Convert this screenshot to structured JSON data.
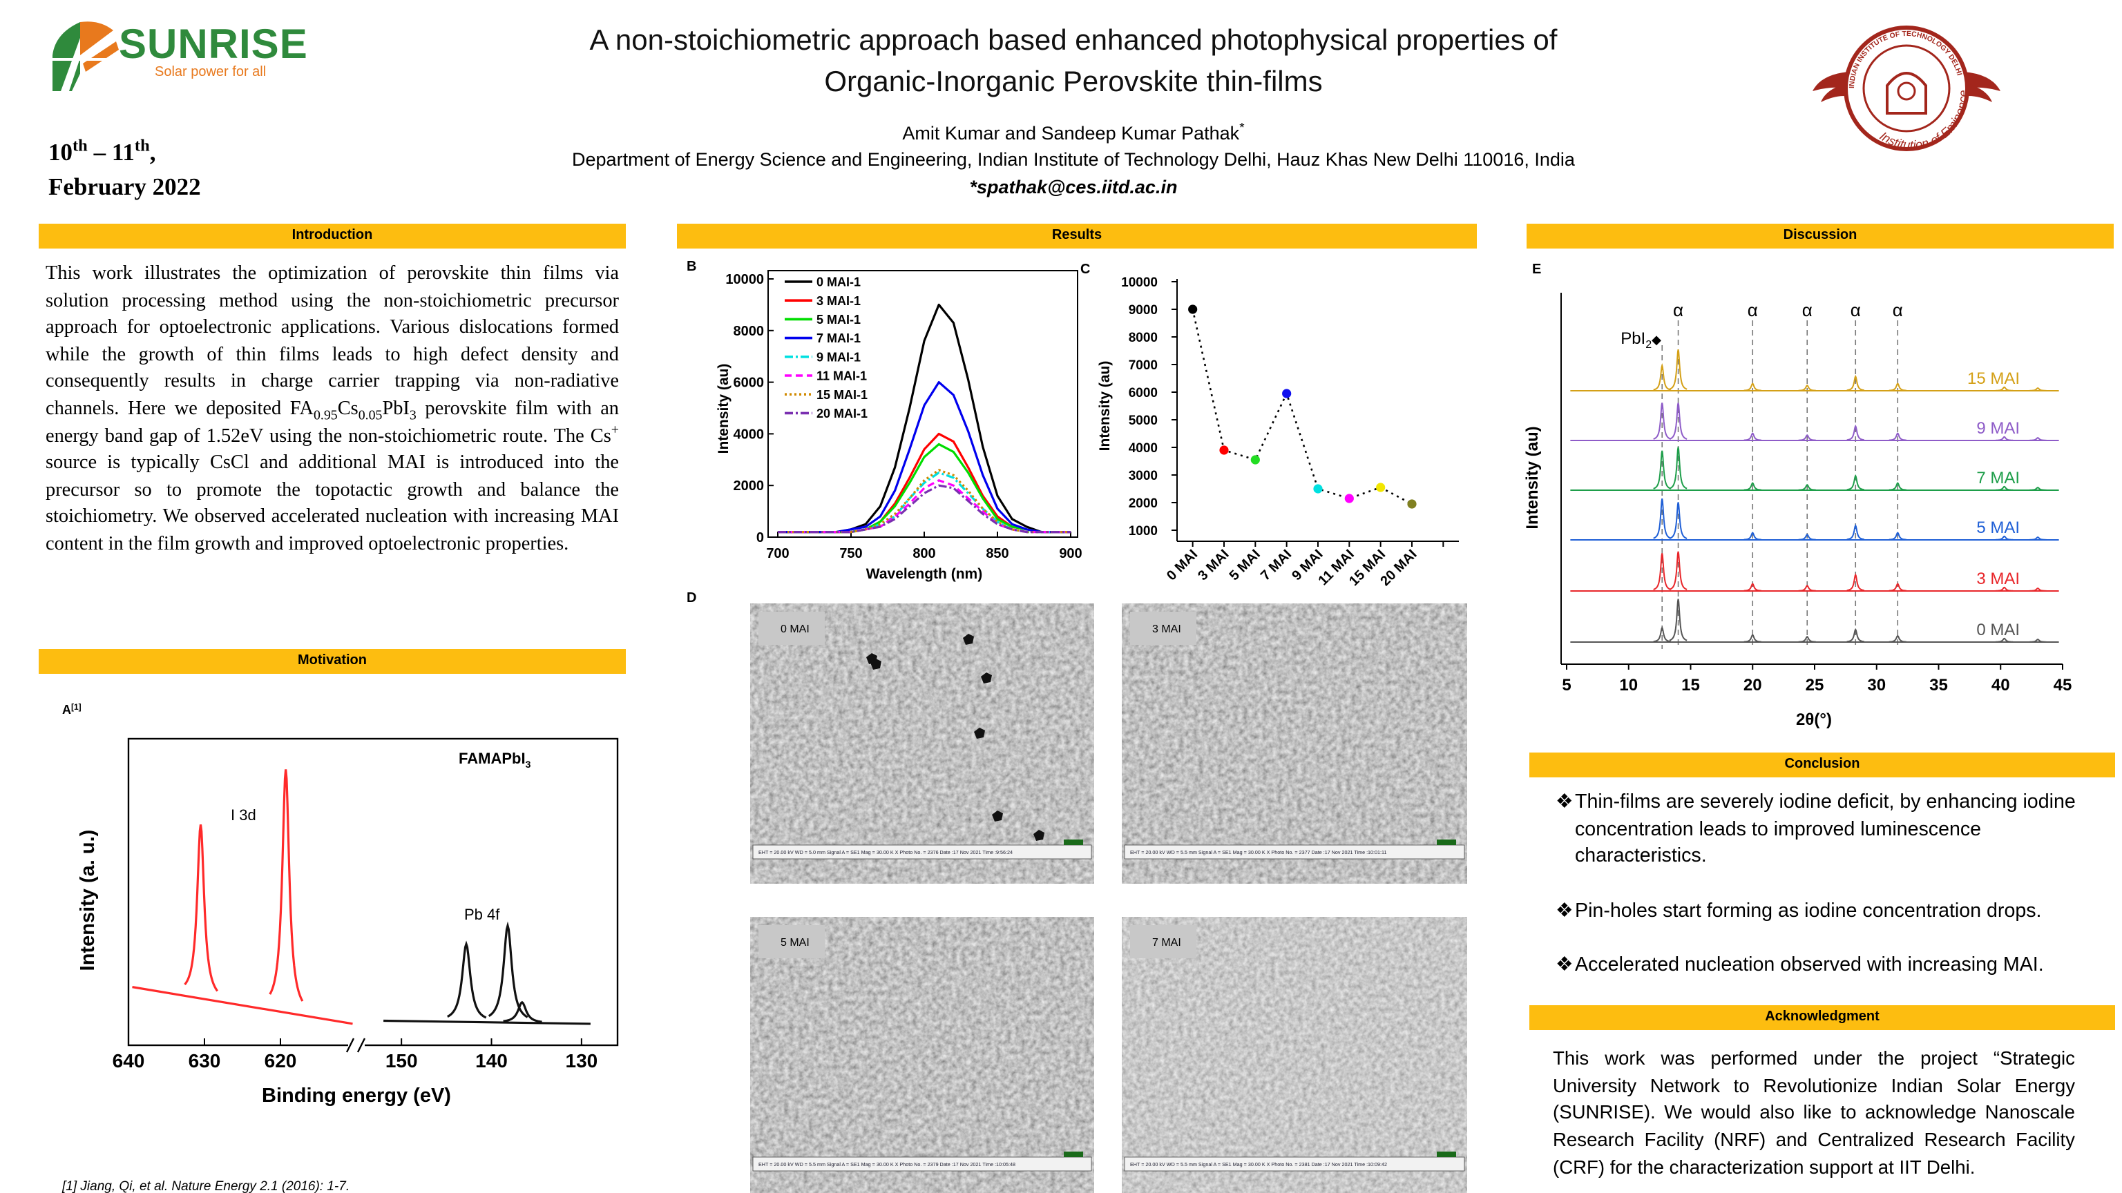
{
  "header": {
    "logo": {
      "name": "SUNRISE",
      "tagline": "Solar power for all"
    },
    "title": [
      "A non-stoichiometric approach based enhanced photophysical properties of",
      "Organic-Inorganic Perovskite thin-films"
    ],
    "date": [
      [
        {
          "t": "10"
        },
        {
          "sup": "th"
        },
        {
          "t": " – 11"
        },
        {
          "sup": "th"
        },
        {
          "t": ","
        }
      ],
      [
        {
          "t": "February 2022"
        }
      ]
    ],
    "authors": [
      {
        "t": "Amit Kumar and Sandeep Kumar Pathak"
      },
      {
        "sup": "*"
      }
    ],
    "affiliation": "Department of Energy Science and Engineering, Indian Institute of Technology Delhi, Hauz Khas New Delhi 110016, India",
    "email": "*spathak@ces.iitd.ac.in",
    "emblem": {
      "ring": "INDIAN INSTITUTE OF TECHNOLOGY DELHI",
      "motto": "Institution of Eminence"
    }
  },
  "sections": {
    "introduction": {
      "heading": "Introduction",
      "text": [
        {
          "t": "This work illustrates the optimization of perovskite thin films via solution processing method using the non-stoichiometric precursor approach for optoelectronic applications. Various dislocations formed while the growth of thin films leads to high defect density and consequently results in charge carrier trapping via non-radiative channels. Here we deposited FA"
        },
        {
          "sub": "0.95"
        },
        {
          "t": "Cs"
        },
        {
          "sub": "0.05"
        },
        {
          "t": "PbI"
        },
        {
          "sub": "3"
        },
        {
          "t": " perovskite film with an energy band gap of 1.52eV using the non-stoichiometric route. The Cs"
        },
        {
          "sup": "+"
        },
        {
          "t": " source is typically CsCl and additional MAI is introduced into the precursor so to promote the topotactic growth and balance the stoichiometry. We observed accelerated nucleation with increasing MAI content in the film growth and improved optoelectronic properties."
        }
      ]
    },
    "motivation": {
      "heading": "Motivation"
    },
    "results": {
      "heading": "Results"
    },
    "discussion": {
      "heading": "Discussion"
    },
    "conclusion": {
      "heading": "Conclusion",
      "bullet_symbol": "❖",
      "bullets": [
        "Thin-films are severely iodine deficit, by enhancing iodine concentration leads to improved luminescence characteristics.",
        "Pin-holes start forming as iodine concentration drops.",
        "Accelerated nucleation observed with increasing MAI."
      ]
    },
    "acknowledgment": {
      "heading": "Acknowledgment",
      "text": "This work was performed under the project “Strategic University Network to Revolutionize Indian Solar Energy (SUNRISE). We would also like to acknowledge Nanoscale Research Facility (NRF) and Centralized Research Facility (CRF) for the characterization support at IIT Delhi."
    }
  },
  "reference": "[1] Jiang, Qi, et al. Nature Energy 2.1 (2016): 1-7.",
  "figures": {
    "A": {
      "label": "A",
      "ref": "[1]",
      "xlabel": "Binding energy (eV)",
      "ylabel": "Intensity (a. u.)",
      "sample": {
        "t": "FAMAPbI",
        "sub": "3"
      },
      "ylim": [
        0,
        1
      ],
      "segments": [
        {
          "xlim": [
            640,
            610
          ],
          "xticks": [
            640,
            630,
            620
          ]
        },
        {
          "xlim": [
            155,
            126
          ],
          "xticks": [
            150,
            140,
            130
          ]
        }
      ],
      "series": [
        {
          "name": "I 3d",
          "color": "#ff2a2a",
          "segment": 0,
          "baseline": [
            0.19,
            0.07
          ],
          "x": [
            630.5,
            619.3
          ],
          "values": [
            0.72,
            0.9
          ]
        },
        {
          "name": "Pb 4f",
          "color": "#111111",
          "segment": 1,
          "baseline": [
            0.08,
            0.07
          ],
          "x": [
            142.8,
            138.2,
            136.6
          ],
          "values": [
            0.33,
            0.39,
            0.14
          ]
        }
      ]
    },
    "B": {
      "label": "B",
      "type": "line",
      "xlabel": "Wavelength (nm)",
      "ylabel": "Intensity (au)",
      "xlim": [
        700,
        900
      ],
      "xticks": [
        700,
        750,
        800,
        850,
        900
      ],
      "ylim": [
        0,
        10000
      ],
      "yticks": [
        0,
        2000,
        4000,
        6000,
        8000,
        10000
      ],
      "x": [
        700,
        710,
        720,
        730,
        740,
        750,
        760,
        770,
        780,
        790,
        800,
        810,
        820,
        830,
        840,
        850,
        860,
        870,
        880,
        890,
        900
      ],
      "series": [
        {
          "name": "0 MAI-1",
          "color": "#000000",
          "dash": "solid",
          "values": [
            200,
            200,
            200,
            200,
            200,
            300,
            500,
            1200,
            2700,
            5000,
            7600,
            9000,
            8300,
            6100,
            3500,
            1600,
            700,
            400,
            200,
            200,
            200
          ]
        },
        {
          "name": "3 MAI-1",
          "color": "#ff0000",
          "dash": "solid",
          "values": [
            200,
            200,
            200,
            200,
            200,
            200,
            300,
            600,
            1300,
            2300,
            3400,
            4000,
            3700,
            2700,
            1600,
            800,
            400,
            300,
            200,
            200,
            200
          ]
        },
        {
          "name": "5 MAI-1",
          "color": "#00dd00",
          "dash": "solid",
          "values": [
            200,
            200,
            200,
            200,
            200,
            200,
            300,
            600,
            1200,
            2100,
            3100,
            3600,
            3300,
            2500,
            1500,
            700,
            400,
            300,
            200,
            200,
            200
          ]
        },
        {
          "name": "7 MAI-1",
          "color": "#0000ee",
          "dash": "solid",
          "values": [
            200,
            200,
            200,
            200,
            200,
            300,
            400,
            800,
            1800,
            3400,
            5100,
            6000,
            5500,
            4100,
            2400,
            1100,
            500,
            300,
            200,
            200,
            200
          ]
        },
        {
          "name": "9 MAI-1",
          "color": "#00e0e0",
          "dash": "dashdot",
          "values": [
            200,
            200,
            200,
            200,
            200,
            200,
            300,
            500,
            800,
            1500,
            2100,
            2500,
            2300,
            1700,
            1100,
            600,
            300,
            200,
            200,
            200,
            200
          ]
        },
        {
          "name": "11 MAI-1",
          "color": "#ff00ff",
          "dash": "dash",
          "values": [
            200,
            200,
            200,
            200,
            200,
            200,
            300,
            400,
            800,
            1300,
            1900,
            2200,
            2000,
            1500,
            1000,
            500,
            300,
            200,
            200,
            200,
            200
          ]
        },
        {
          "name": "15 MAI-1",
          "color": "#d08a00",
          "dash": "dot",
          "values": [
            200,
            200,
            200,
            200,
            200,
            200,
            300,
            500,
            900,
            1500,
            2200,
            2600,
            2400,
            1800,
            1100,
            600,
            300,
            200,
            200,
            200,
            200
          ]
        },
        {
          "name": "20 MAI-1",
          "color": "#7a2fb0",
          "dash": "dashdot",
          "values": [
            200,
            200,
            200,
            200,
            200,
            200,
            300,
            400,
            700,
            1200,
            1700,
            2000,
            1900,
            1400,
            900,
            500,
            300,
            200,
            200,
            200,
            200
          ]
        }
      ]
    },
    "C": {
      "label": "C",
      "type": "scatter",
      "ylabel": "Intensity (au)",
      "categories": [
        "0 MAI",
        "3 MAI",
        "5 MAI",
        "7 MAI",
        "9 MAI",
        "11 MAI",
        "15 MAI",
        "20 MAI",
        null
      ],
      "values": [
        9000,
        3900,
        3550,
        5950,
        2500,
        2150,
        2550,
        1950,
        null
      ],
      "colors": [
        "#000000",
        "#ff0000",
        "#22dd22",
        "#1010ee",
        "#00e0e0",
        "#ff00ff",
        "#f2e600",
        "#808020",
        null
      ],
      "ylim": [
        1000,
        10000
      ],
      "yticks": [
        1000,
        2000,
        3000,
        4000,
        5000,
        6000,
        7000,
        8000,
        9000,
        10000
      ]
    },
    "D": {
      "label": "D",
      "panels": [
        {
          "label": "0 MAI",
          "info": "EHT = 20.00 kV   WD = 5.0 mm   Signal A = SE1   Mag = 30.00 K X   Photo No. = 2376   Date :17 Nov 2021   Time :9:56:24"
        },
        {
          "label": "3 MAI",
          "info": "EHT = 20.00 kV   WD = 5.5 mm   Signal A = SE1   Mag = 30.00 K X   Photo No. = 2377   Date :17 Nov 2021   Time :10:01:11"
        },
        {
          "label": "5 MAI",
          "info": "EHT = 20.00 kV   WD = 5.5 mm   Signal A = SE1   Mag = 30.00 K X   Photo No. = 2379   Date :17 Nov 2021   Time :10:05:48"
        },
        {
          "label": "7 MAI",
          "info": "EHT = 20.00 kV   WD = 5.5 mm   Signal A = SE1   Mag = 30.00 K X   Photo No. = 2381   Date :17 Nov 2021   Time :10:09:42"
        }
      ]
    },
    "E": {
      "label": "E",
      "xlabel": "2θ(°)",
      "ylabel": "Intensity (au)",
      "xlim": [
        5,
        45
      ],
      "xticks": [
        5,
        10,
        15,
        20,
        25,
        30,
        35,
        40,
        45
      ],
      "alpha": {
        "label": "α",
        "x": [
          14.0,
          20.0,
          24.4,
          28.3,
          31.7
        ]
      },
      "pbi2": {
        "t": "PbI",
        "sub": "2",
        "symbol": "◆",
        "x": 12.7
      },
      "x": [
        12.7,
        14.0,
        20.0,
        24.4,
        28.3,
        31.7,
        40.3,
        43.0
      ],
      "series": [
        {
          "name": "0 MAI",
          "color": "#555555",
          "values": [
            0.8,
            2.4,
            0.4,
            0.3,
            0.7,
            0.35,
            0.2,
            0.15
          ]
        },
        {
          "name": "3 MAI",
          "color": "#e8262a",
          "values": [
            2.1,
            2.2,
            0.4,
            0.3,
            0.9,
            0.4,
            0.2,
            0.15
          ]
        },
        {
          "name": "5 MAI",
          "color": "#1f5fd6",
          "values": [
            2.3,
            2.1,
            0.4,
            0.3,
            0.8,
            0.4,
            0.2,
            0.15
          ]
        },
        {
          "name": "7 MAI",
          "color": "#1e9e4a",
          "values": [
            2.2,
            2.4,
            0.4,
            0.3,
            0.8,
            0.4,
            0.2,
            0.15
          ]
        },
        {
          "name": "9 MAI",
          "color": "#8e5cc8",
          "values": [
            2.1,
            2.1,
            0.4,
            0.3,
            0.8,
            0.4,
            0.2,
            0.15
          ]
        },
        {
          "name": "15 MAI",
          "color": "#d4a017",
          "values": [
            1.4,
            2.3,
            0.4,
            0.3,
            0.8,
            0.4,
            0.2,
            0.15
          ]
        }
      ]
    }
  }
}
